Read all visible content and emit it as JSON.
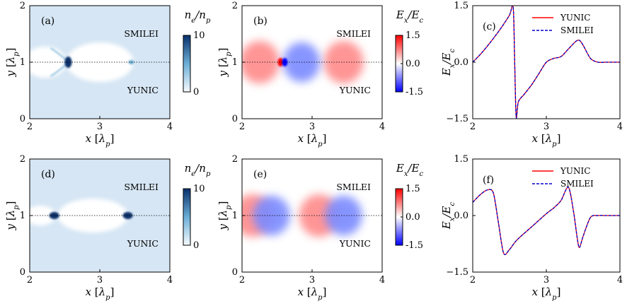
{
  "chart_data": [
    {
      "id": "a",
      "type": "heatmap",
      "panel_label": "(a)",
      "quantity": "density",
      "annotations": {
        "top": "SMILEI",
        "bottom": "YUNIC"
      },
      "xlabel": "x [λp]",
      "ylabel": "y [λp]",
      "xlim": [
        2,
        4
      ],
      "ylim": [
        0,
        2
      ],
      "xticks": [
        "2",
        "3",
        "4"
      ],
      "yticks": [
        "0",
        "1",
        "2"
      ],
      "colorbar": {
        "label": "ne/np",
        "ticks": [
          "0",
          "10"
        ],
        "range": [
          0,
          10
        ]
      },
      "features": {
        "bubble_center": 3.0,
        "spike_x": 2.55,
        "bubble_rear_x": 3.45
      }
    },
    {
      "id": "b",
      "type": "heatmap",
      "panel_label": "(b)",
      "quantity": "field",
      "annotations": {
        "top": "SMILEI",
        "bottom": "YUNIC"
      },
      "xlabel": "x [λp]",
      "ylabel": "y [λp]",
      "xlim": [
        2,
        4
      ],
      "ylim": [
        0,
        2
      ],
      "xticks": [
        "2",
        "3",
        "4"
      ],
      "yticks": [
        "0",
        "1",
        "2"
      ],
      "colorbar": {
        "label": "Ex/Ec",
        "ticks": [
          "1.5",
          "0.0",
          "-1.5"
        ],
        "range": [
          -1.5,
          1.5
        ]
      },
      "features": {
        "red_lobes_x": [
          2.25,
          3.45
        ],
        "blue_lobe_x": 2.85,
        "spike_x": 2.58
      }
    },
    {
      "id": "c",
      "type": "line",
      "panel_label": "(c)",
      "xlabel": "x [λp]",
      "ylabel": "Ex/Ec",
      "xlim": [
        2,
        4
      ],
      "ylim": [
        -1.5,
        1.5
      ],
      "xticks": [
        "2",
        "3",
        "4"
      ],
      "yticks": [
        "-1.5",
        "0.0",
        "1.5"
      ],
      "series": [
        {
          "name": "YUNIC",
          "color": "#ff0000",
          "style": "solid"
        },
        {
          "name": "SMILEI",
          "color": "#0000cc",
          "style": "dashed"
        }
      ],
      "x": [
        2.0,
        2.1,
        2.2,
        2.3,
        2.4,
        2.5,
        2.55,
        2.57,
        2.59,
        2.62,
        2.7,
        2.8,
        2.9,
        3.0,
        3.1,
        3.2,
        3.3,
        3.4,
        3.45,
        3.5,
        3.6,
        3.7,
        3.8,
        3.9,
        4.0
      ],
      "values": [
        0.0,
        0.2,
        0.43,
        0.68,
        0.95,
        1.25,
        1.45,
        0.0,
        -1.45,
        -1.05,
        -0.85,
        -0.6,
        -0.3,
        0.0,
        0.1,
        0.15,
        0.35,
        0.55,
        0.58,
        0.45,
        0.1,
        0.0,
        0.0,
        0.0,
        0.0
      ]
    },
    {
      "id": "d",
      "type": "heatmap",
      "panel_label": "(d)",
      "quantity": "density",
      "annotations": {
        "top": "SMILEI",
        "bottom": "YUNIC"
      },
      "xlabel": "x [λp]",
      "ylabel": "y [λp]",
      "xlim": [
        2,
        4
      ],
      "ylim": [
        0,
        2
      ],
      "xticks": [
        "2",
        "3",
        "4"
      ],
      "yticks": [
        "0",
        "1",
        "2"
      ],
      "colorbar": {
        "label": "ne/np",
        "ticks": [
          "0",
          "10"
        ],
        "range": [
          0,
          10
        ]
      },
      "features": {
        "bubble_center": 2.9,
        "spike_x": [
          2.35,
          3.4
        ]
      }
    },
    {
      "id": "e",
      "type": "heatmap",
      "panel_label": "(e)",
      "quantity": "field",
      "annotations": {
        "top": "SMILEI",
        "bottom": "YUNIC"
      },
      "xlabel": "x [λp]",
      "ylabel": "y [λp]",
      "xlim": [
        2,
        4
      ],
      "ylim": [
        0,
        2
      ],
      "xticks": [
        "2",
        "3",
        "4"
      ],
      "yticks": [
        "0",
        "1",
        "2"
      ],
      "colorbar": {
        "label": "Ex/Ec",
        "ticks": [
          "1.5",
          "0.0",
          "-1.5"
        ],
        "range": [
          -1.5,
          1.5
        ]
      },
      "features": {
        "red_lobes_x": [
          2.15,
          3.1
        ],
        "blue_lobes_x": [
          2.42,
          3.45
        ]
      }
    },
    {
      "id": "f",
      "type": "line",
      "panel_label": "(f)",
      "xlabel": "x [λp]",
      "ylabel": "Ex/Ec",
      "xlim": [
        2,
        4
      ],
      "ylim": [
        -1.5,
        1.5
      ],
      "xticks": [
        "2",
        "3",
        "4"
      ],
      "yticks": [
        "-1.5",
        "0.0",
        "1.5"
      ],
      "series": [
        {
          "name": "YUNIC",
          "color": "#ff0000",
          "style": "solid"
        },
        {
          "name": "SMILEI",
          "color": "#0000cc",
          "style": "dashed"
        }
      ],
      "x": [
        2.0,
        2.1,
        2.2,
        2.28,
        2.35,
        2.42,
        2.5,
        2.6,
        2.8,
        3.0,
        3.1,
        3.2,
        3.3,
        3.37,
        3.42,
        3.45,
        3.5,
        3.6,
        3.7,
        3.8,
        3.9,
        4.0
      ],
      "values": [
        0.35,
        0.55,
        0.68,
        0.6,
        -0.2,
        -1.0,
        -0.9,
        -0.65,
        -0.3,
        0.05,
        0.2,
        0.4,
        0.75,
        0.1,
        -0.6,
        -0.85,
        -0.55,
        -0.05,
        0.0,
        0.0,
        0.0,
        0.0
      ]
    }
  ]
}
